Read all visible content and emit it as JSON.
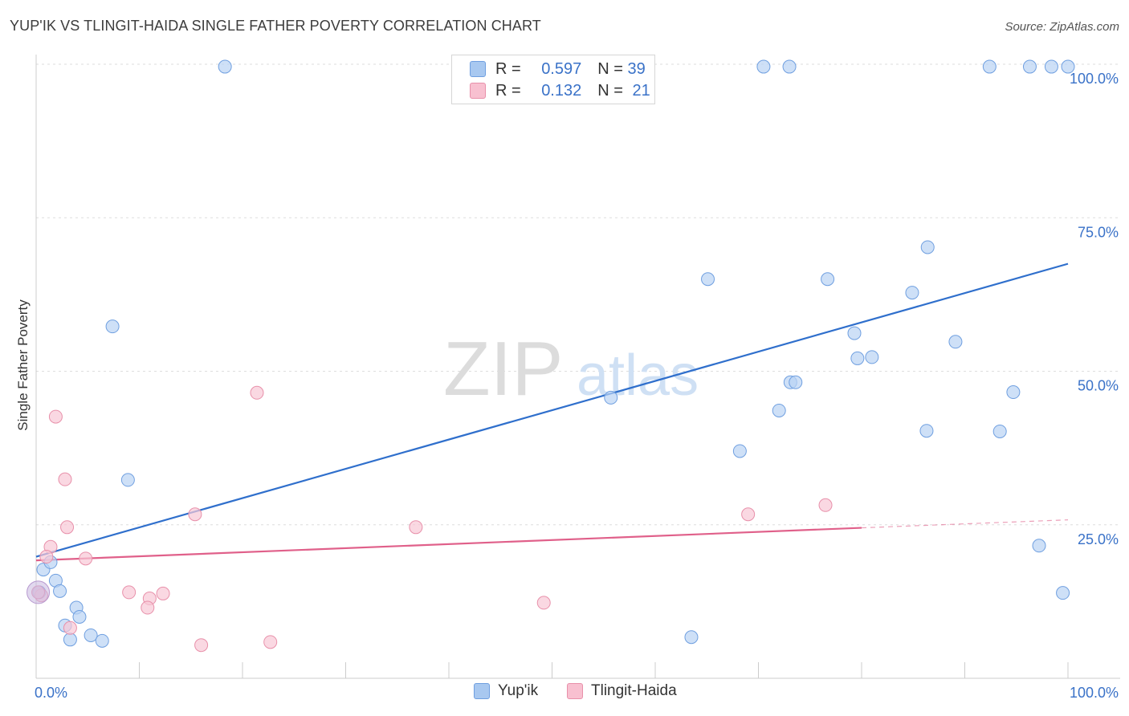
{
  "title": "YUP'IK VS TLINGIT-HAIDA SINGLE FATHER POVERTY CORRELATION CHART",
  "source": "Source: ZipAtlas.com",
  "watermark": {
    "zip": "ZIP",
    "atlas": "atlas"
  },
  "legend_top": [
    {
      "r_label": "R =",
      "r_value": "0.597",
      "n_label": "N =",
      "n_value": "39",
      "color": "#a8c8f0",
      "border": "#6f9fe0"
    },
    {
      "r_label": "R =",
      "r_value": "0.132",
      "n_label": "N =",
      "n_value": "21",
      "color": "#f8c0d0",
      "border": "#e890aa"
    }
  ],
  "legend_bottom": [
    {
      "label": "Yup'ik",
      "color": "#a8c8f0",
      "border": "#6f9fe0"
    },
    {
      "label": "Tlingit-Haida",
      "color": "#f8c0d0",
      "border": "#e890aa"
    }
  ],
  "chart_data": {
    "type": "scatter",
    "title": "YUP'IK VS TLINGIT-HAIDA SINGLE FATHER POVERTY CORRELATION CHART",
    "xlabel": "",
    "ylabel": "Single Father Poverty",
    "xlim": [
      0,
      100
    ],
    "ylim": [
      0,
      100
    ],
    "x_tick_labels": [
      "0.0%",
      "100.0%"
    ],
    "y_tick_labels": [
      "25.0%",
      "50.0%",
      "75.0%",
      "100.0%"
    ],
    "y_ticks": [
      25,
      50,
      75,
      100
    ],
    "grid": true,
    "series": [
      {
        "name": "Yup'ik",
        "color": "#6f9fe0",
        "fill": "#b9d3f4",
        "line_color": "#2f6fcc",
        "trend": [
          [
            0,
            19.8
          ],
          [
            100,
            67.5
          ]
        ],
        "points": [
          [
            18.3,
            99.6
          ],
          [
            70.5,
            99.6
          ],
          [
            73.0,
            99.6
          ],
          [
            92.4,
            99.6
          ],
          [
            96.3,
            99.6
          ],
          [
            98.4,
            99.6
          ],
          [
            100,
            99.6
          ],
          [
            86.4,
            70.2
          ],
          [
            65.1,
            65.0
          ],
          [
            76.7,
            65.0
          ],
          [
            84.9,
            62.8
          ],
          [
            79.3,
            56.2
          ],
          [
            89.1,
            54.8
          ],
          [
            79.6,
            52.1
          ],
          [
            81.0,
            52.3
          ],
          [
            73.1,
            48.2
          ],
          [
            73.6,
            48.2
          ],
          [
            94.7,
            46.6
          ],
          [
            55.7,
            45.7
          ],
          [
            72.0,
            43.6
          ],
          [
            86.3,
            40.3
          ],
          [
            93.4,
            40.2
          ],
          [
            68.2,
            37.0
          ],
          [
            7.4,
            57.3
          ],
          [
            8.9,
            32.3
          ],
          [
            97.2,
            21.6
          ],
          [
            99.5,
            13.9
          ],
          [
            63.5,
            6.7
          ],
          [
            0.7,
            17.7
          ],
          [
            1.4,
            18.9
          ],
          [
            1.9,
            15.9
          ],
          [
            2.3,
            14.2
          ],
          [
            0.3,
            14.0
          ],
          [
            3.9,
            11.5
          ],
          [
            4.2,
            10.0
          ],
          [
            2.8,
            8.6
          ],
          [
            3.3,
            6.3
          ],
          [
            5.3,
            7.0
          ],
          [
            6.4,
            6.1
          ]
        ]
      },
      {
        "name": "Tlingit-Haida",
        "color": "#e890aa",
        "fill": "#f8c8d6",
        "line_color": "#e0608a",
        "trend": [
          [
            0,
            19.2
          ],
          [
            80,
            24.5
          ]
        ],
        "trend_dashed": [
          [
            80,
            24.5
          ],
          [
            100,
            25.8
          ]
        ],
        "points": [
          [
            21.4,
            46.5
          ],
          [
            1.9,
            42.6
          ],
          [
            2.8,
            32.4
          ],
          [
            3.0,
            24.6
          ],
          [
            1.4,
            21.4
          ],
          [
            1.0,
            19.8
          ],
          [
            4.8,
            19.5
          ],
          [
            15.4,
            26.7
          ],
          [
            36.8,
            24.6
          ],
          [
            69.0,
            26.7
          ],
          [
            76.5,
            28.2
          ],
          [
            9.0,
            14.0
          ],
          [
            12.3,
            13.8
          ],
          [
            11.0,
            13.0
          ],
          [
            10.8,
            11.5
          ],
          [
            49.2,
            12.3
          ],
          [
            3.3,
            8.2
          ],
          [
            16.0,
            5.4
          ],
          [
            22.7,
            5.9
          ],
          [
            0.5,
            13.5
          ],
          [
            0.2,
            14.0
          ]
        ]
      }
    ]
  }
}
